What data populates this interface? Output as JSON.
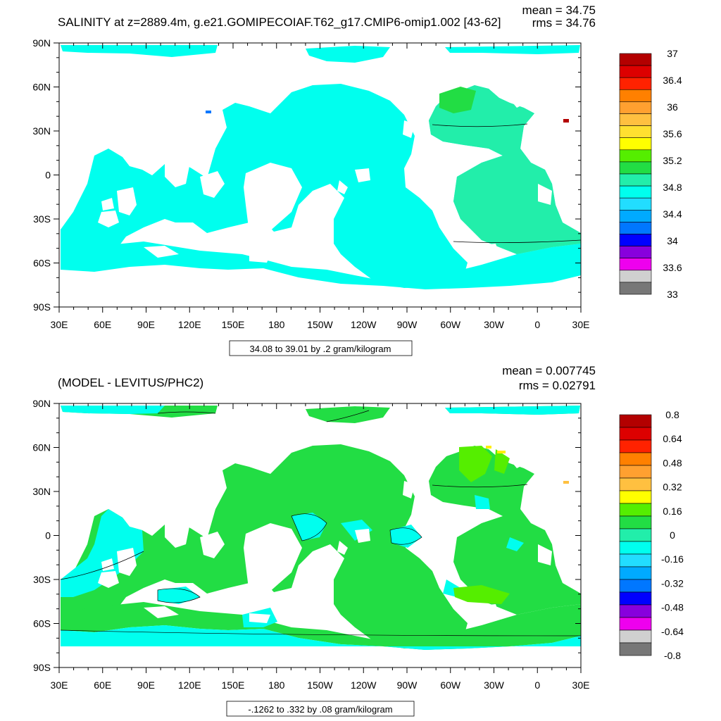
{
  "panels": [
    {
      "title": "SALINITY at z=2889.4m, g.e21.GOMIPECOIAF.T62_g17.CMIP6-omip1.002 [43-62]",
      "stats": {
        "mean": "mean = 34.75",
        "rms": "rms = 34.76"
      },
      "lat_labels": [
        "90N",
        "60N",
        "30N",
        "0",
        "30S",
        "60S",
        "90S"
      ],
      "lon_labels": [
        "30E",
        "60E",
        "90E",
        "120E",
        "150E",
        "180",
        "150W",
        "120W",
        "90W",
        "60W",
        "30W",
        "0",
        "30E"
      ],
      "range_label": "34.08 to 39.01 by .2 gram/kilogram",
      "colorbar": {
        "labels": [
          "37",
          "36.4",
          "36",
          "35.6",
          "35.2",
          "34.8",
          "34.4",
          "34",
          "33.6",
          "33"
        ],
        "colors": [
          "#b30000",
          "#dd0000",
          "#ff2200",
          "#ff8000",
          "#ffa030",
          "#ffc040",
          "#ffe030",
          "#ffff00",
          "#55ee00",
          "#22dd44",
          "#22eeaa",
          "#00ffee",
          "#22ddff",
          "#00aaff",
          "#0077ff",
          "#0000ff",
          "#8800dd",
          "#ee00ee",
          "#d0d0d0",
          "#777777"
        ]
      }
    },
    {
      "title": "(MODEL - LEVITUS/PHC2)",
      "stats": {
        "mean": "mean = 0.007745",
        "rms": "rms = 0.02791"
      },
      "lat_labels": [
        "90N",
        "60N",
        "30N",
        "0",
        "30S",
        "60S",
        "90S"
      ],
      "lon_labels": [
        "30E",
        "60E",
        "90E",
        "120E",
        "150E",
        "180",
        "150W",
        "120W",
        "90W",
        "60W",
        "30W",
        "0",
        "30E"
      ],
      "range_label": "-.1262 to .332 by .08 gram/kilogram",
      "colorbar": {
        "labels": [
          "0.8",
          "0.64",
          "0.48",
          "0.32",
          "0.16",
          "0",
          "-0.16",
          "-0.32",
          "-0.48",
          "-0.64",
          "-0.8"
        ],
        "colors": [
          "#b30000",
          "#dd0000",
          "#ff2200",
          "#ff8000",
          "#ffa030",
          "#ffc040",
          "#ffff00",
          "#55ee00",
          "#22dd44",
          "#22eeaa",
          "#00ffee",
          "#22ddff",
          "#00aaff",
          "#0077ff",
          "#0000ff",
          "#8800dd",
          "#ee00ee",
          "#d0d0d0",
          "#777777"
        ]
      }
    }
  ]
}
